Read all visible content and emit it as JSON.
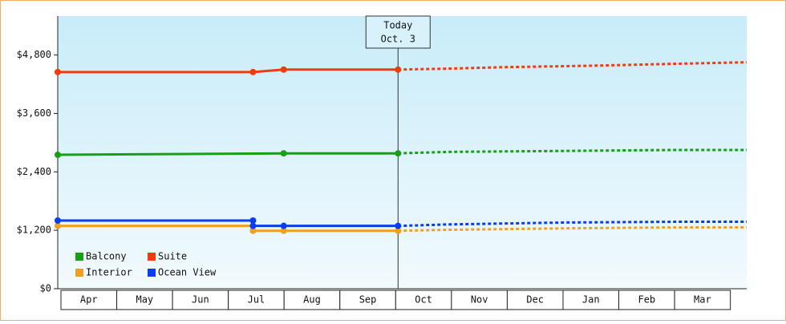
{
  "chart_data": {
    "type": "line",
    "categories": [
      "Apr",
      "May",
      "Jun",
      "Jul",
      "Aug",
      "Sep",
      "Oct",
      "Nov",
      "Dec",
      "Jan",
      "Feb",
      "Mar"
    ],
    "xlim": [
      0,
      12.35
    ],
    "ylim": [
      0,
      5600
    ],
    "yticks": [
      {
        "value": 0,
        "label": "$0"
      },
      {
        "value": 1200,
        "label": "$1,200"
      },
      {
        "value": 2400,
        "label": "$2,400"
      },
      {
        "value": 3600,
        "label": "$3,600"
      },
      {
        "value": 4800,
        "label": "$4,800"
      }
    ],
    "today": {
      "x": 6.1,
      "labels": [
        "Today",
        "Oct. 3"
      ]
    },
    "legend": "lower left",
    "series": [
      {
        "name": "Balcony",
        "color": "#16a016",
        "x": [
          0,
          4.05,
          6.1,
          7.0,
          9.1,
          11.1,
          12.35
        ],
        "values": [
          2750,
          2780,
          2780,
          2810,
          2830,
          2850,
          2850
        ]
      },
      {
        "name": "Suite",
        "color": "#f03c0c",
        "x": [
          0,
          3.5,
          4.05,
          6.1,
          7.0,
          8.0,
          9.6,
          11.1,
          12.35
        ],
        "values": [
          4450,
          4450,
          4500,
          4500,
          4520,
          4550,
          4580,
          4620,
          4650
        ]
      },
      {
        "name": "Interior",
        "color": "#f0a020",
        "x": [
          0,
          3.5,
          3.5,
          4.05,
          6.1,
          7.0,
          9.1,
          11.1,
          12.35
        ],
        "values": [
          1290,
          1290,
          1190,
          1190,
          1190,
          1210,
          1240,
          1260,
          1260
        ]
      },
      {
        "name": "Ocean View",
        "color": "#0a3cf0",
        "x": [
          0,
          3.5,
          3.5,
          4.05,
          6.1,
          7.0,
          9.1,
          11.1,
          12.35
        ],
        "values": [
          1400,
          1400,
          1290,
          1290,
          1290,
          1320,
          1360,
          1375,
          1375
        ]
      }
    ]
  }
}
